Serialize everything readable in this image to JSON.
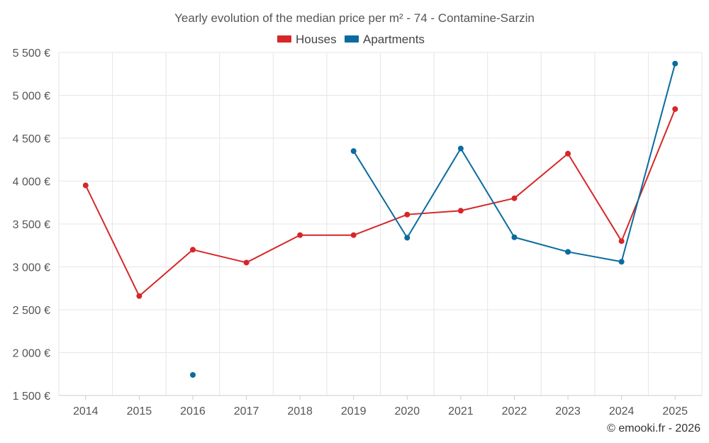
{
  "chart_data": {
    "type": "line",
    "title": "Yearly evolution of the median price per m² - 74 - Contamine-Sarzin",
    "categories": [
      "2014",
      "2015",
      "2016",
      "2017",
      "2018",
      "2019",
      "2020",
      "2021",
      "2022",
      "2023",
      "2024",
      "2025"
    ],
    "ylim": [
      1500,
      5500
    ],
    "yticks": [
      1500,
      2000,
      2500,
      3000,
      3500,
      4000,
      4500,
      5000,
      5500
    ],
    "ytick_labels": [
      "1 500 €",
      "2 000 €",
      "2 500 €",
      "3 000 €",
      "3 500 €",
      "4 000 €",
      "4 500 €",
      "5 000 €",
      "5 500 €"
    ],
    "grid": true,
    "legend_position": "top-center",
    "series": [
      {
        "name": "Houses",
        "color": "#d62728",
        "values": [
          3950,
          2660,
          3200,
          3050,
          3370,
          3370,
          3610,
          3655,
          3800,
          4320,
          3300,
          4840
        ]
      },
      {
        "name": "Apartments",
        "color": "#0a6b9e",
        "values": [
          null,
          null,
          1740,
          null,
          null,
          4350,
          3340,
          4380,
          3345,
          3175,
          3060,
          5370
        ]
      }
    ],
    "credit": "© emooki.fr - 2026"
  }
}
